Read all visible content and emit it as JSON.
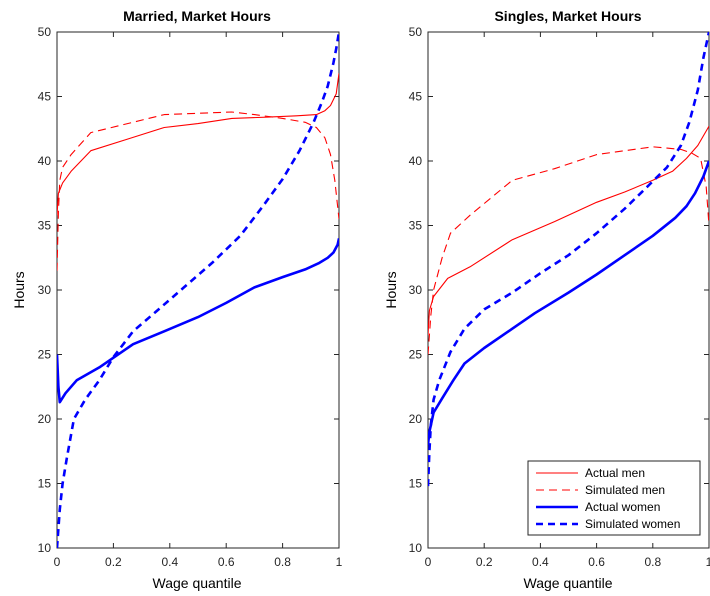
{
  "chart_data": [
    {
      "type": "line",
      "title": "Married, Market Hours",
      "xlabel": "Wage quantile",
      "ylabel": "Hours",
      "xlim": [
        0,
        1
      ],
      "ylim": [
        10,
        50
      ],
      "xticks": [
        "0",
        "0.2",
        "0.4",
        "0.6",
        "0.8",
        "1"
      ],
      "yticks": [
        "10",
        "15",
        "20",
        "25",
        "30",
        "35",
        "40",
        "45",
        "50"
      ],
      "grid": false,
      "series": [
        {
          "name": "Actual men",
          "color": "#ff0000",
          "style": "solid",
          "width": "thin",
          "x": [
            0,
            0.005,
            0.02,
            0.05,
            0.12,
            0.25,
            0.38,
            0.5,
            0.62,
            0.75,
            0.85,
            0.92,
            0.95,
            0.97,
            0.99,
            1.0
          ],
          "y": [
            35.8,
            37.5,
            38.3,
            39.2,
            40.8,
            41.7,
            42.6,
            42.9,
            43.3,
            43.4,
            43.5,
            43.6,
            43.9,
            44.3,
            45.2,
            46.8
          ]
        },
        {
          "name": "Simulated men",
          "color": "#ff0000",
          "style": "dashed",
          "width": "thin",
          "x": [
            0,
            0.005,
            0.01,
            0.02,
            0.05,
            0.12,
            0.25,
            0.38,
            0.5,
            0.62,
            0.7,
            0.8,
            0.88,
            0.92,
            0.95,
            0.97,
            0.985,
            1.0
          ],
          "y": [
            31.5,
            36.0,
            38.5,
            39.5,
            40.5,
            42.2,
            42.9,
            43.6,
            43.7,
            43.8,
            43.6,
            43.3,
            43.0,
            42.6,
            41.8,
            40.5,
            38.5,
            35.5
          ]
        },
        {
          "name": "Actual women",
          "color": "#0000ff",
          "style": "solid",
          "width": "thick",
          "x": [
            0,
            0.005,
            0.01,
            0.03,
            0.07,
            0.15,
            0.27,
            0.38,
            0.5,
            0.6,
            0.7,
            0.8,
            0.88,
            0.93,
            0.96,
            0.98,
            0.995,
            1.0
          ],
          "y": [
            25.0,
            22.5,
            21.3,
            22.0,
            23.0,
            24.0,
            25.8,
            26.8,
            27.9,
            29.0,
            30.2,
            31.0,
            31.6,
            32.1,
            32.5,
            32.9,
            33.5,
            34.0
          ]
        },
        {
          "name": "Simulated women",
          "color": "#0000ff",
          "style": "dashed",
          "width": "thick",
          "x": [
            0,
            0.005,
            0.01,
            0.02,
            0.035,
            0.06,
            0.1,
            0.15,
            0.2,
            0.27,
            0.35,
            0.45,
            0.55,
            0.65,
            0.73,
            0.8,
            0.86,
            0.91,
            0.94,
            0.96,
            0.98,
            0.99,
            1.0
          ],
          "y": [
            10.0,
            11.5,
            13.0,
            15.0,
            17.0,
            20.0,
            21.5,
            23.0,
            24.8,
            26.8,
            28.3,
            30.2,
            32.1,
            34.2,
            36.5,
            38.6,
            40.8,
            43.0,
            44.6,
            45.8,
            47.6,
            48.7,
            50.0
          ]
        }
      ]
    },
    {
      "type": "line",
      "title": "Singles, Market Hours",
      "xlabel": "Wage quantile",
      "ylabel": "Hours",
      "xlim": [
        0,
        1
      ],
      "ylim": [
        10,
        50
      ],
      "xticks": [
        "0",
        "0.2",
        "0.4",
        "0.6",
        "0.8",
        "1"
      ],
      "yticks": [
        "10",
        "15",
        "20",
        "25",
        "30",
        "35",
        "40",
        "45",
        "50"
      ],
      "grid": false,
      "legend": "bottom-right",
      "series": [
        {
          "name": "Actual men",
          "color": "#ff0000",
          "style": "solid",
          "width": "thin",
          "x": [
            0,
            0.005,
            0.02,
            0.07,
            0.15,
            0.3,
            0.45,
            0.6,
            0.7,
            0.8,
            0.87,
            0.92,
            0.96,
            1.0
          ],
          "y": [
            26.5,
            28.4,
            29.5,
            30.9,
            31.8,
            33.9,
            35.3,
            36.8,
            37.6,
            38.5,
            39.2,
            40.2,
            41.2,
            42.7
          ]
        },
        {
          "name": "Simulated men",
          "color": "#ff0000",
          "style": "dashed",
          "width": "thin",
          "x": [
            0,
            0.01,
            0.02,
            0.05,
            0.08,
            0.15,
            0.3,
            0.45,
            0.6,
            0.7,
            0.8,
            0.85,
            0.9,
            0.94,
            0.97,
            0.99,
            1.0
          ],
          "y": [
            25.0,
            28.0,
            30.0,
            32.5,
            34.4,
            35.8,
            38.5,
            39.4,
            40.5,
            40.8,
            41.1,
            41.0,
            40.9,
            40.6,
            40.2,
            38.0,
            35.0
          ]
        },
        {
          "name": "Actual women",
          "color": "#0000ff",
          "style": "solid",
          "width": "thick",
          "x": [
            0,
            0.005,
            0.02,
            0.05,
            0.09,
            0.13,
            0.2,
            0.3,
            0.38,
            0.5,
            0.6,
            0.7,
            0.8,
            0.88,
            0.92,
            0.95,
            0.98,
            1.0
          ],
          "y": [
            18.0,
            19.0,
            20.5,
            21.6,
            23.0,
            24.3,
            25.5,
            27.0,
            28.2,
            29.8,
            31.2,
            32.7,
            34.2,
            35.6,
            36.5,
            37.5,
            38.8,
            40.0
          ]
        },
        {
          "name": "Simulated women",
          "color": "#0000ff",
          "style": "dashed",
          "width": "thick",
          "x": [
            0,
            0.005,
            0.01,
            0.02,
            0.04,
            0.08,
            0.13,
            0.2,
            0.3,
            0.4,
            0.5,
            0.6,
            0.7,
            0.78,
            0.85,
            0.9,
            0.93,
            0.96,
            0.98,
            1.0
          ],
          "y": [
            14.8,
            17.5,
            19.5,
            21.5,
            23.0,
            25.2,
            27.0,
            28.5,
            29.8,
            31.3,
            32.7,
            34.4,
            36.3,
            38.0,
            39.5,
            41.2,
            43.0,
            45.5,
            48.0,
            50.0
          ]
        }
      ]
    }
  ]
}
